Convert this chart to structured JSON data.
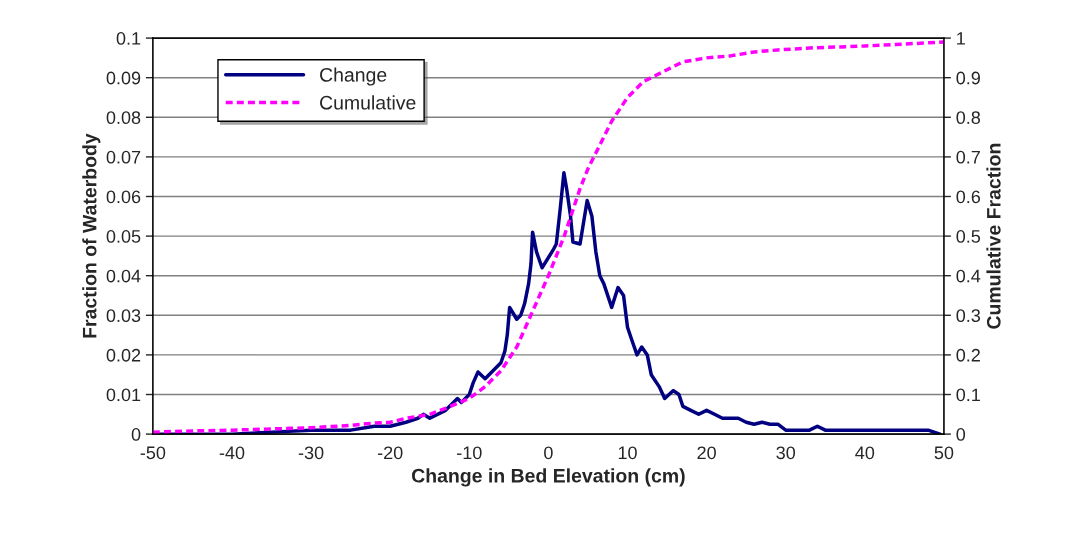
{
  "chart_data": {
    "type": "line",
    "xlabel": "Change in Bed Elevation (cm)",
    "ylabel": "Fraction of Waterbody",
    "y2label": "Cumulative Fraction",
    "xlim": [
      -50,
      50
    ],
    "xticks": [
      -50,
      -40,
      -30,
      -20,
      -10,
      0,
      10,
      20,
      30,
      40,
      50
    ],
    "ylim": [
      0,
      0.1
    ],
    "yticks": [
      0,
      0.01,
      0.02,
      0.03,
      0.04,
      0.05,
      0.06,
      0.07,
      0.08,
      0.09,
      0.1
    ],
    "y2lim": [
      0,
      1
    ],
    "y2ticks": [
      0,
      0.1,
      0.2,
      0.3,
      0.4,
      0.5,
      0.6,
      0.7,
      0.8,
      0.9,
      1
    ],
    "grid": "y",
    "legend": "top left",
    "series": [
      {
        "name": "Change",
        "color": "#000080",
        "line_style": "solid",
        "x": [
          -50,
          -45,
          -40,
          -35,
          -30,
          -25,
          -22,
          -20,
          -18,
          -16.5,
          -15.8,
          -15,
          -13,
          -12,
          -11.5,
          -11,
          -10,
          -9.5,
          -8.9,
          -8,
          -7,
          -6,
          -5.5,
          -5.2,
          -4.9,
          -4,
          -3.5,
          -3,
          -2.5,
          -2.2,
          -2,
          -1.5,
          -0.8,
          0.6,
          1,
          1.5,
          1.96,
          2.3,
          2.8,
          3.1,
          4,
          4.9,
          5.5,
          6,
          6.5,
          7,
          8,
          8.8,
          9.5,
          10,
          10.5,
          11.2,
          11.8,
          12.5,
          13,
          14,
          14.7,
          15.8,
          16.5,
          17,
          18,
          19,
          20,
          21,
          22,
          24,
          25,
          26,
          27,
          28,
          29,
          30,
          33,
          34,
          35,
          40,
          45,
          48,
          49.5
        ],
        "values": [
          0,
          0,
          0,
          0.0005,
          0.001,
          0.001,
          0.002,
          0.002,
          0.003,
          0.004,
          0.005,
          0.004,
          0.006,
          0.008,
          0.009,
          0.008,
          0.01,
          0.013,
          0.0157,
          0.014,
          0.016,
          0.018,
          0.021,
          0.025,
          0.032,
          0.029,
          0.03,
          0.033,
          0.038,
          0.043,
          0.051,
          0.046,
          0.042,
          0.0465,
          0.048,
          0.057,
          0.066,
          0.062,
          0.055,
          0.0485,
          0.048,
          0.059,
          0.055,
          0.046,
          0.04,
          0.038,
          0.032,
          0.037,
          0.035,
          0.027,
          0.024,
          0.02,
          0.022,
          0.02,
          0.015,
          0.012,
          0.009,
          0.011,
          0.01,
          0.007,
          0.006,
          0.005,
          0.006,
          0.005,
          0.004,
          0.004,
          0.003,
          0.0025,
          0.003,
          0.0025,
          0.0025,
          0.001,
          0.001,
          0.002,
          0.001,
          0.001,
          0.001,
          0.001,
          0
        ]
      },
      {
        "name": "Cumulative",
        "color": "#ff00ff",
        "line_style": "dashed",
        "axis": "y2",
        "x": [
          -50,
          -45,
          -40,
          -35,
          -30,
          -25,
          -22,
          -20,
          -18,
          -15,
          -13,
          -10,
          -8,
          -6,
          -4,
          -2,
          0,
          2,
          3,
          4,
          5,
          6,
          7,
          8,
          9,
          10,
          11,
          12,
          13,
          15,
          17,
          20,
          23,
          26,
          29,
          33,
          40,
          45,
          50
        ],
        "values": [
          0.005,
          0.008,
          0.01,
          0.013,
          0.016,
          0.022,
          0.028,
          0.03,
          0.04,
          0.05,
          0.065,
          0.09,
          0.12,
          0.16,
          0.22,
          0.31,
          0.4,
          0.5,
          0.56,
          0.62,
          0.67,
          0.71,
          0.75,
          0.79,
          0.82,
          0.85,
          0.87,
          0.89,
          0.9,
          0.92,
          0.94,
          0.95,
          0.955,
          0.965,
          0.97,
          0.975,
          0.98,
          0.985,
          0.99
        ]
      }
    ]
  }
}
